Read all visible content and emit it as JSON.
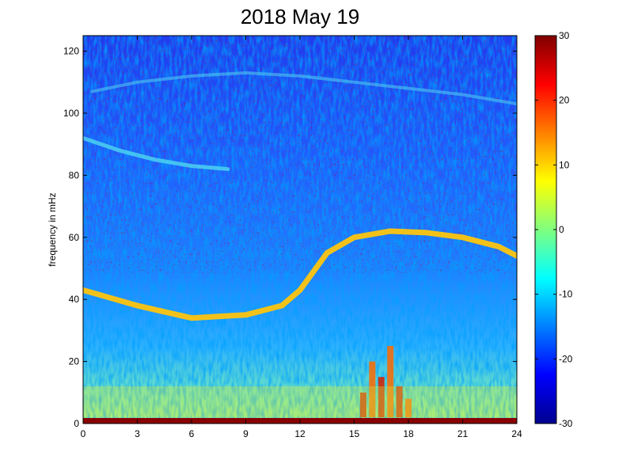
{
  "chart_data": {
    "type": "heatmap",
    "title": "2018 May 19",
    "xlabel": "",
    "ylabel": "frequency in mHz",
    "xlim": [
      0,
      24
    ],
    "ylim": [
      0,
      125
    ],
    "x_ticks": [
      "0",
      "3",
      "6",
      "9",
      "12",
      "15",
      "18",
      "21",
      "24"
    ],
    "y_ticks": [
      "0",
      "20",
      "40",
      "60",
      "80",
      "100",
      "120"
    ],
    "colorbar": {
      "colormap": "jet",
      "range": [
        -30,
        30
      ],
      "ticks": [
        "30",
        "20",
        "10",
        "0",
        "-10",
        "-20",
        "-30"
      ]
    },
    "features": [
      {
        "description": "primary bright band (~0 to +5)",
        "x": [
          0,
          3,
          6,
          9,
          11,
          12,
          13.5,
          15,
          17,
          19,
          21,
          23,
          24
        ],
        "y": [
          43,
          38,
          34,
          35,
          38,
          43,
          55,
          60,
          62,
          61.5,
          60,
          57,
          54
        ]
      },
      {
        "description": "secondary faint band (~-10)",
        "x": [
          0,
          2,
          4,
          6,
          8
        ],
        "y": [
          92,
          88,
          85,
          83,
          82
        ]
      },
      {
        "description": "upper faint arc (~-12)",
        "x": [
          0.5,
          3,
          6,
          9,
          12,
          15,
          18,
          21,
          24
        ],
        "y": [
          107,
          110,
          112,
          113,
          112,
          110,
          108,
          106,
          103
        ]
      },
      {
        "description": "low-frequency energy burst (up to ~+25)",
        "x": [
          15.5,
          16,
          16.5,
          17,
          17.5,
          18
        ],
        "y": [
          10,
          20,
          15,
          25,
          12,
          8
        ]
      }
    ]
  }
}
